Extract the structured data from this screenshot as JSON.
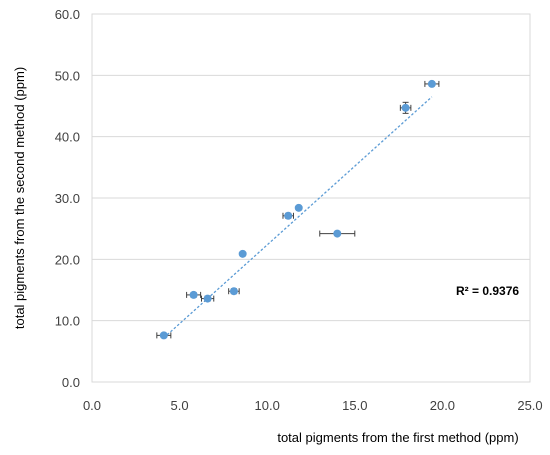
{
  "chart_data": {
    "type": "scatter",
    "title": "",
    "xlabel": "total pigments from the first method (ppm)",
    "ylabel": "total pigments from the second method (ppm)",
    "xlim": [
      0,
      25
    ],
    "ylim": [
      0,
      60
    ],
    "x_ticks": [
      "0.0",
      "5.0",
      "10.0",
      "15.0",
      "20.0",
      "25.0"
    ],
    "y_ticks": [
      "0.0",
      "10.0",
      "20.0",
      "30.0",
      "40.0",
      "50.0",
      "60.0"
    ],
    "grid": "horizontal",
    "legend": "none",
    "series": [
      {
        "color": "#5b9bd5",
        "points": [
          {
            "x": 4.1,
            "y": 7.6,
            "xerr": 0.4,
            "yerr": 0.3
          },
          {
            "x": 5.8,
            "y": 14.2,
            "xerr": 0.4,
            "yerr": 0.4
          },
          {
            "x": 6.6,
            "y": 13.6,
            "xerr": 0.35,
            "yerr": 0.4
          },
          {
            "x": 8.1,
            "y": 14.8,
            "xerr": 0.3,
            "yerr": 0.4
          },
          {
            "x": 8.6,
            "y": 20.9,
            "xerr": 0.1,
            "yerr": 0.3
          },
          {
            "x": 11.2,
            "y": 27.1,
            "xerr": 0.3,
            "yerr": 0.4
          },
          {
            "x": 11.8,
            "y": 28.4,
            "xerr": 0.1,
            "yerr": 0.3
          },
          {
            "x": 14.0,
            "y": 24.2,
            "xerr": 1.0,
            "yerr": 0.3
          },
          {
            "x": 17.9,
            "y": 44.7,
            "xerr": 0.3,
            "yerr": 0.9
          },
          {
            "x": 19.4,
            "y": 48.6,
            "xerr": 0.4,
            "yerr": 0.3
          }
        ]
      }
    ],
    "trendline": {
      "type": "linear",
      "style": "dotted",
      "color": "#5b9bd5",
      "x_range": [
        4.1,
        19.4
      ],
      "y_at_start": 7.2,
      "y_at_end": 46.5,
      "r_squared_label": "R² = 0.9376"
    },
    "errorbar_color": "#404040"
  }
}
